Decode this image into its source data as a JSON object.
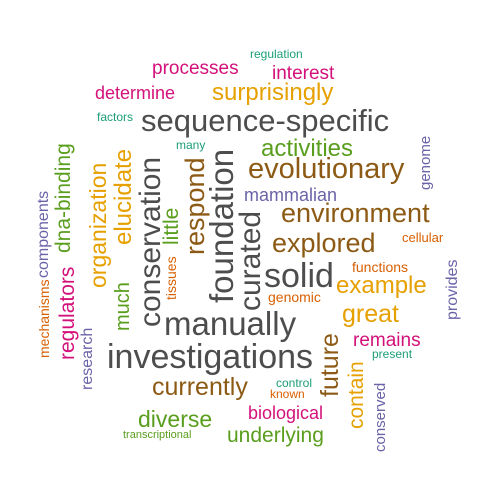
{
  "word_cloud": {
    "horizontal_words": [
      {
        "text": "regulation",
        "color": "#1b9e77"
      },
      {
        "text": "processes",
        "color": "#d4117a"
      },
      {
        "text": "interest",
        "color": "#d4117a"
      },
      {
        "text": "determine",
        "color": "#d4117a"
      },
      {
        "text": "surprisingly",
        "color": "#e6a000"
      },
      {
        "text": "factors",
        "color": "#1b9e77"
      },
      {
        "text": "sequence-specific",
        "color": "#4d4d4d"
      },
      {
        "text": "many",
        "color": "#1b9e77"
      },
      {
        "text": "activities",
        "color": "#5a9e1e"
      },
      {
        "text": "evolutionary",
        "color": "#8c5a14"
      },
      {
        "text": "mammalian",
        "color": "#6a63a8"
      },
      {
        "text": "environment",
        "color": "#8c5a14"
      },
      {
        "text": "explored",
        "color": "#8c5a14"
      },
      {
        "text": "cellular",
        "color": "#d95f02"
      },
      {
        "text": "solid",
        "color": "#4d4d4d"
      },
      {
        "text": "functions",
        "color": "#d95f02"
      },
      {
        "text": "example",
        "color": "#e6a000"
      },
      {
        "text": "genomic",
        "color": "#d95f02"
      },
      {
        "text": "great",
        "color": "#e6a000"
      },
      {
        "text": "manually",
        "color": "#4d4d4d"
      },
      {
        "text": "remains",
        "color": "#d4117a"
      },
      {
        "text": "present",
        "color": "#1b9e77"
      },
      {
        "text": "investigations",
        "color": "#4d4d4d"
      },
      {
        "text": "control",
        "color": "#1b9e77"
      },
      {
        "text": "currently",
        "color": "#8c5a14"
      },
      {
        "text": "known",
        "color": "#d95f02"
      },
      {
        "text": "biological",
        "color": "#d4117a"
      },
      {
        "text": "diverse",
        "color": "#5a9e1e"
      },
      {
        "text": "transcriptional",
        "color": "#5a9e1e"
      },
      {
        "text": "underlying",
        "color": "#5a9e1e"
      }
    ],
    "vertical_words": [
      {
        "text": "genome",
        "color": "#6a63a8"
      },
      {
        "text": "components",
        "color": "#6a63a8"
      },
      {
        "text": "dna-binding",
        "color": "#5a9e1e"
      },
      {
        "text": "mechanisms",
        "color": "#d95f02"
      },
      {
        "text": "regulators",
        "color": "#d4117a"
      },
      {
        "text": "organization",
        "color": "#e6a000"
      },
      {
        "text": "elucidate",
        "color": "#e6a000"
      },
      {
        "text": "research",
        "color": "#6a63a8"
      },
      {
        "text": "much",
        "color": "#5a9e1e"
      },
      {
        "text": "conservation",
        "color": "#4d4d4d"
      },
      {
        "text": "little",
        "color": "#5a9e1e"
      },
      {
        "text": "tissues",
        "color": "#d95f02"
      },
      {
        "text": "respond",
        "color": "#8c5a14"
      },
      {
        "text": "foundation",
        "color": "#4d4d4d"
      },
      {
        "text": "curated",
        "color": "#4d4d4d"
      },
      {
        "text": "provides",
        "color": "#6a63a8"
      },
      {
        "text": "future",
        "color": "#8c5a14"
      },
      {
        "text": "contain",
        "color": "#e6a000"
      },
      {
        "text": "conserved",
        "color": "#6a63a8"
      }
    ]
  }
}
